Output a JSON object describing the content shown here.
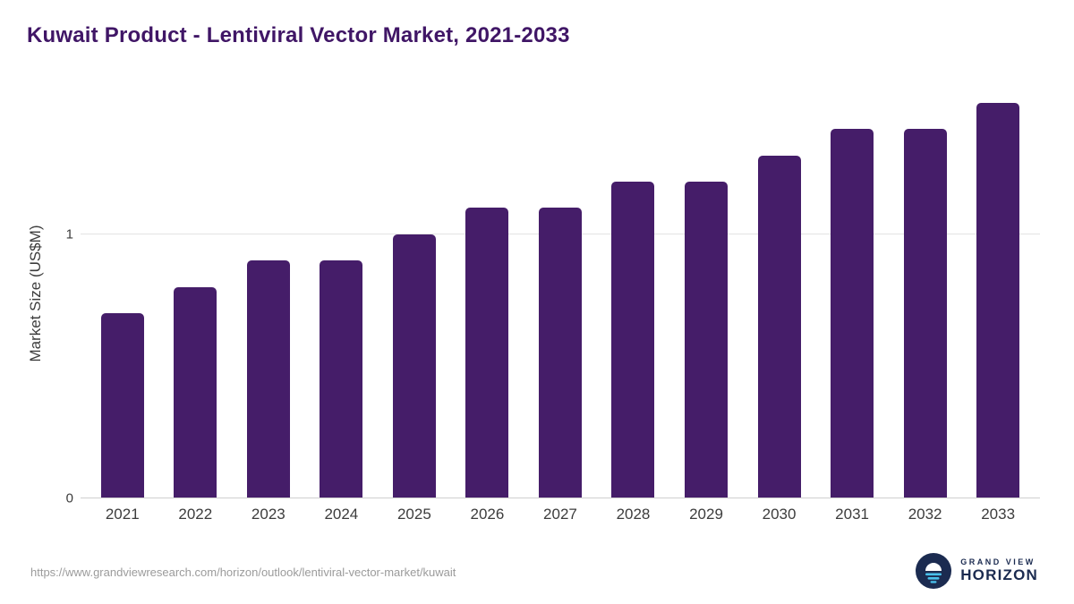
{
  "page": {
    "source_url": "https://www.grandviewresearch.com/horizon/outlook/lentiviral-vector-market/kuwait",
    "brand": {
      "line1": "GRAND VIEW",
      "line2": "HORIZON"
    }
  },
  "chart_data": {
    "type": "bar",
    "title": "Kuwait Product - Lentiviral Vector Market, 2021-2033",
    "xlabel": "",
    "ylabel": "Market Size (US$M)",
    "categories": [
      "2021",
      "2022",
      "2023",
      "2024",
      "2025",
      "2026",
      "2027",
      "2028",
      "2029",
      "2030",
      "2031",
      "2032",
      "2033"
    ],
    "values": [
      0.7,
      0.8,
      0.9,
      0.9,
      1.0,
      1.1,
      1.1,
      1.2,
      1.2,
      1.3,
      1.4,
      1.4,
      1.5
    ],
    "yticks": [
      0,
      1
    ],
    "ylim": [
      0,
      1.55
    ],
    "grid": "horizontal",
    "legend": "none",
    "bar_color": "#451d69",
    "colors": {
      "title": "#401666",
      "axis_text": "#3c3c3c",
      "gridline": "#e3e3e3",
      "axis_line": "#cfcfcf",
      "footer_text": "#9b9b9b",
      "brand_navy": "#1b2b50",
      "brand_lightblue": "#49c0eb"
    }
  }
}
